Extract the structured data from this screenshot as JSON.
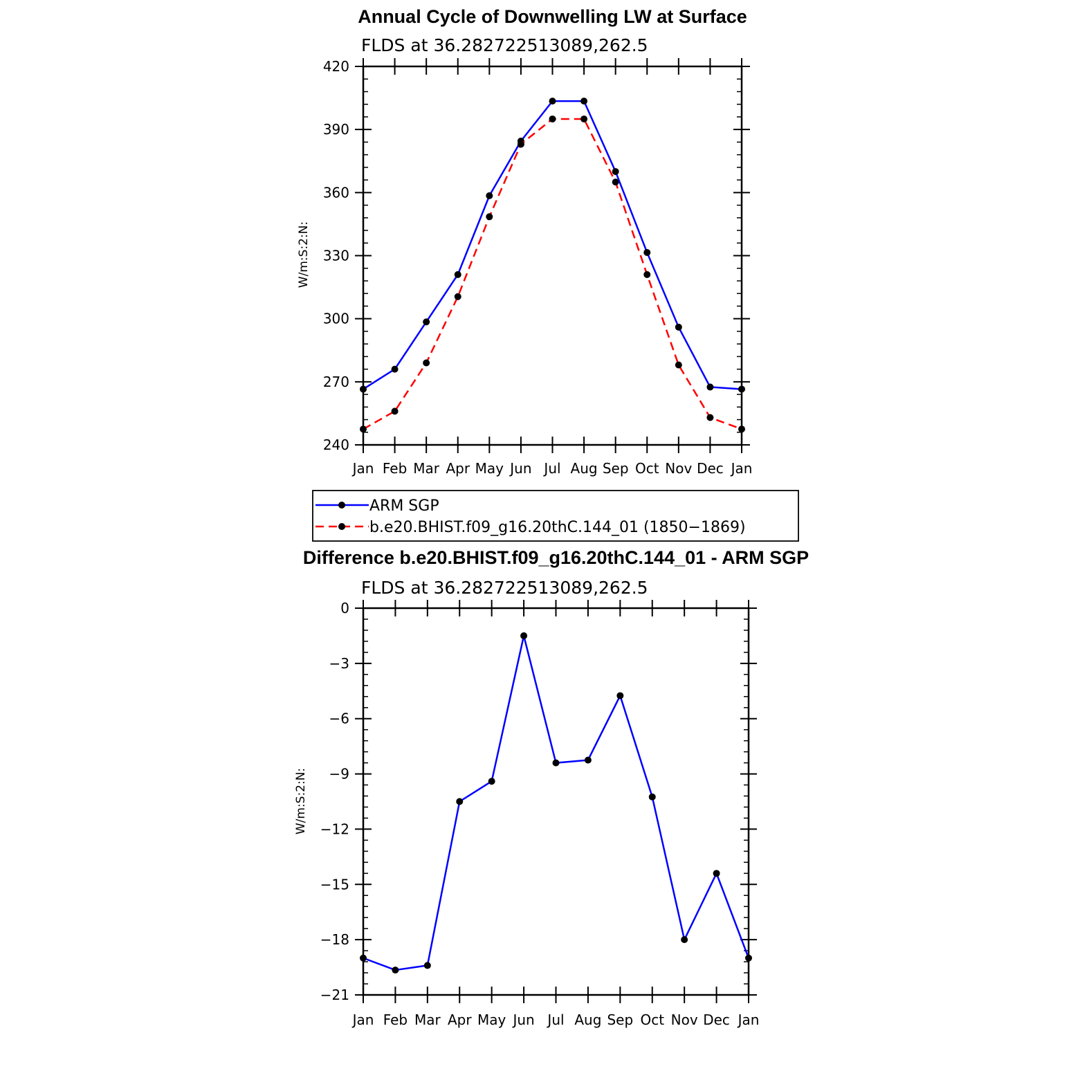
{
  "chart_data": [
    {
      "type": "line",
      "title": "Annual Cycle of Downwelling LW at Surface",
      "subtitle": "FLDS at 36.282722513089,262.5",
      "ylabel": "W/m:S:2:N:",
      "ylim": [
        240,
        420
      ],
      "yticks": [
        "420",
        "390",
        "360",
        "330",
        "300",
        "270",
        "240"
      ],
      "categories": [
        "Jan",
        "Feb",
        "Mar",
        "Apr",
        "May",
        "Jun",
        "Jul",
        "Aug",
        "Sep",
        "Oct",
        "Nov",
        "Dec",
        "Jan"
      ],
      "series": [
        {
          "name": "ARM SGP",
          "color": "#0000ff",
          "dash": "solid",
          "values": [
            266.5,
            276,
            298.5,
            321,
            358.5,
            384.5,
            403.5,
            403.5,
            370,
            331.5,
            296,
            267.5,
            266.5
          ]
        },
        {
          "name": "b.e20.BHIST.f09_g16.20thC.144_01 (1850−1869)",
          "color": "#ff0000",
          "dash": "dashed",
          "values": [
            247.5,
            256,
            279,
            310.5,
            348.5,
            383,
            395,
            395,
            365,
            321,
            278,
            253,
            247.5
          ]
        }
      ],
      "legend_position": "bottom"
    },
    {
      "type": "line",
      "title": "Difference b.e20.BHIST.f09_g16.20thC.144_01 - ARM SGP",
      "subtitle": "FLDS at 36.282722513089,262.5",
      "ylabel": "W/m:S:2:N:",
      "ylim": [
        -21,
        0
      ],
      "yticks": [
        "0",
        "−3",
        "−6",
        "−9",
        "−12",
        "−15",
        "−18",
        "−21"
      ],
      "categories": [
        "Jan",
        "Feb",
        "Mar",
        "Apr",
        "May",
        "Jun",
        "Jul",
        "Aug",
        "Sep",
        "Oct",
        "Nov",
        "Dec",
        "Jan"
      ],
      "series": [
        {
          "color": "#0000ff",
          "dash": "solid",
          "values": [
            -19,
            -19.65,
            -19.4,
            -10.5,
            -9.4,
            -1.5,
            -8.4,
            -8.25,
            -4.75,
            -10.25,
            -18,
            -14.4,
            -19
          ]
        }
      ]
    }
  ]
}
